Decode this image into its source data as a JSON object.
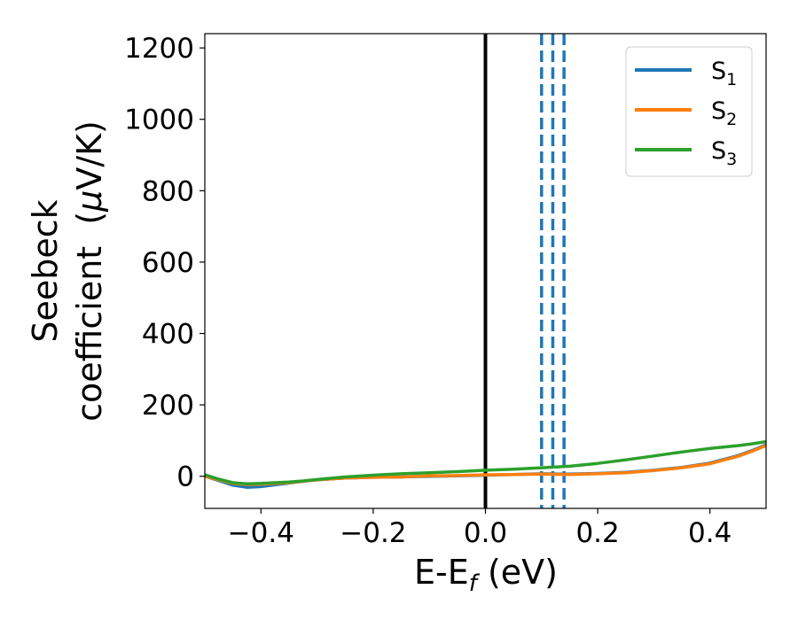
{
  "chart_data": {
    "type": "line",
    "xlabel": {
      "main": "E-E",
      "sub": "f",
      "suffix": " (eV)"
    },
    "ylabel": {
      "line1": "Seebeck",
      "line2_pre": "coefficient  (",
      "mu": "μ",
      "line2_post": "V/K)"
    },
    "xlim": [
      -0.5,
      0.5
    ],
    "ylim": [
      -90,
      1240
    ],
    "x_ticks": [
      -0.4,
      -0.2,
      0.0,
      0.2,
      0.4
    ],
    "x_tick_labels": [
      "−0.4",
      "−0.2",
      "0.0",
      "0.2",
      "0.4"
    ],
    "y_ticks": [
      0,
      200,
      400,
      600,
      800,
      1000,
      1200
    ],
    "y_tick_labels": [
      "0",
      "200",
      "400",
      "600",
      "800",
      "1000",
      "1200"
    ],
    "legend_position": "top-right",
    "series": [
      {
        "name": "S",
        "sub": "1",
        "color": "#1f77b4",
        "x": [
          -0.5,
          -0.475,
          -0.45,
          -0.425,
          -0.4,
          -0.375,
          -0.35,
          -0.325,
          -0.3,
          -0.25,
          -0.2,
          -0.15,
          -0.1,
          -0.05,
          0.0,
          0.05,
          0.1,
          0.15,
          0.2,
          0.25,
          0.3,
          0.35,
          0.4,
          0.45,
          0.475,
          0.5
        ],
        "y": [
          0,
          -12,
          -25,
          -31,
          -29,
          -24,
          -19,
          -14,
          -10,
          -5,
          -3,
          -2,
          0,
          1,
          3,
          5,
          7,
          6,
          8,
          11,
          17,
          25,
          37,
          58,
          72,
          88
        ]
      },
      {
        "name": "S",
        "sub": "2",
        "color": "#ff7f0e",
        "x": [
          -0.5,
          -0.475,
          -0.45,
          -0.425,
          -0.4,
          -0.375,
          -0.35,
          -0.325,
          -0.3,
          -0.25,
          -0.2,
          -0.15,
          -0.1,
          -0.05,
          0.0,
          0.05,
          0.1,
          0.15,
          0.2,
          0.25,
          0.3,
          0.35,
          0.4,
          0.45,
          0.475,
          0.5
        ],
        "y": [
          0,
          -10,
          -20,
          -23,
          -22,
          -20,
          -18,
          -14,
          -10,
          -5,
          -3,
          -2,
          1,
          2,
          4,
          5,
          6,
          5,
          7,
          10,
          16,
          24,
          35,
          56,
          70,
          86
        ]
      },
      {
        "name": "S",
        "sub": "3",
        "color": "#2ca02c",
        "x": [
          -0.5,
          -0.475,
          -0.45,
          -0.425,
          -0.4,
          -0.375,
          -0.35,
          -0.325,
          -0.3,
          -0.25,
          -0.2,
          -0.15,
          -0.1,
          -0.05,
          0.0,
          0.05,
          0.1,
          0.15,
          0.2,
          0.25,
          0.3,
          0.35,
          0.4,
          0.45,
          0.475,
          0.5
        ],
        "y": [
          4,
          -8,
          -18,
          -21,
          -20,
          -18,
          -16,
          -13,
          -9,
          -2,
          3,
          7,
          10,
          13,
          17,
          20,
          24,
          28,
          36,
          46,
          57,
          68,
          78,
          86,
          91,
          97
        ]
      }
    ],
    "vertical_lines": [
      {
        "x": 0.0,
        "color": "#000000",
        "style": "solid"
      },
      {
        "x": 0.1,
        "color": "#1f77b4",
        "style": "dashed"
      },
      {
        "x": 0.12,
        "color": "#1f77b4",
        "style": "dashed"
      },
      {
        "x": 0.14,
        "color": "#1f77b4",
        "style": "dashed"
      }
    ]
  }
}
